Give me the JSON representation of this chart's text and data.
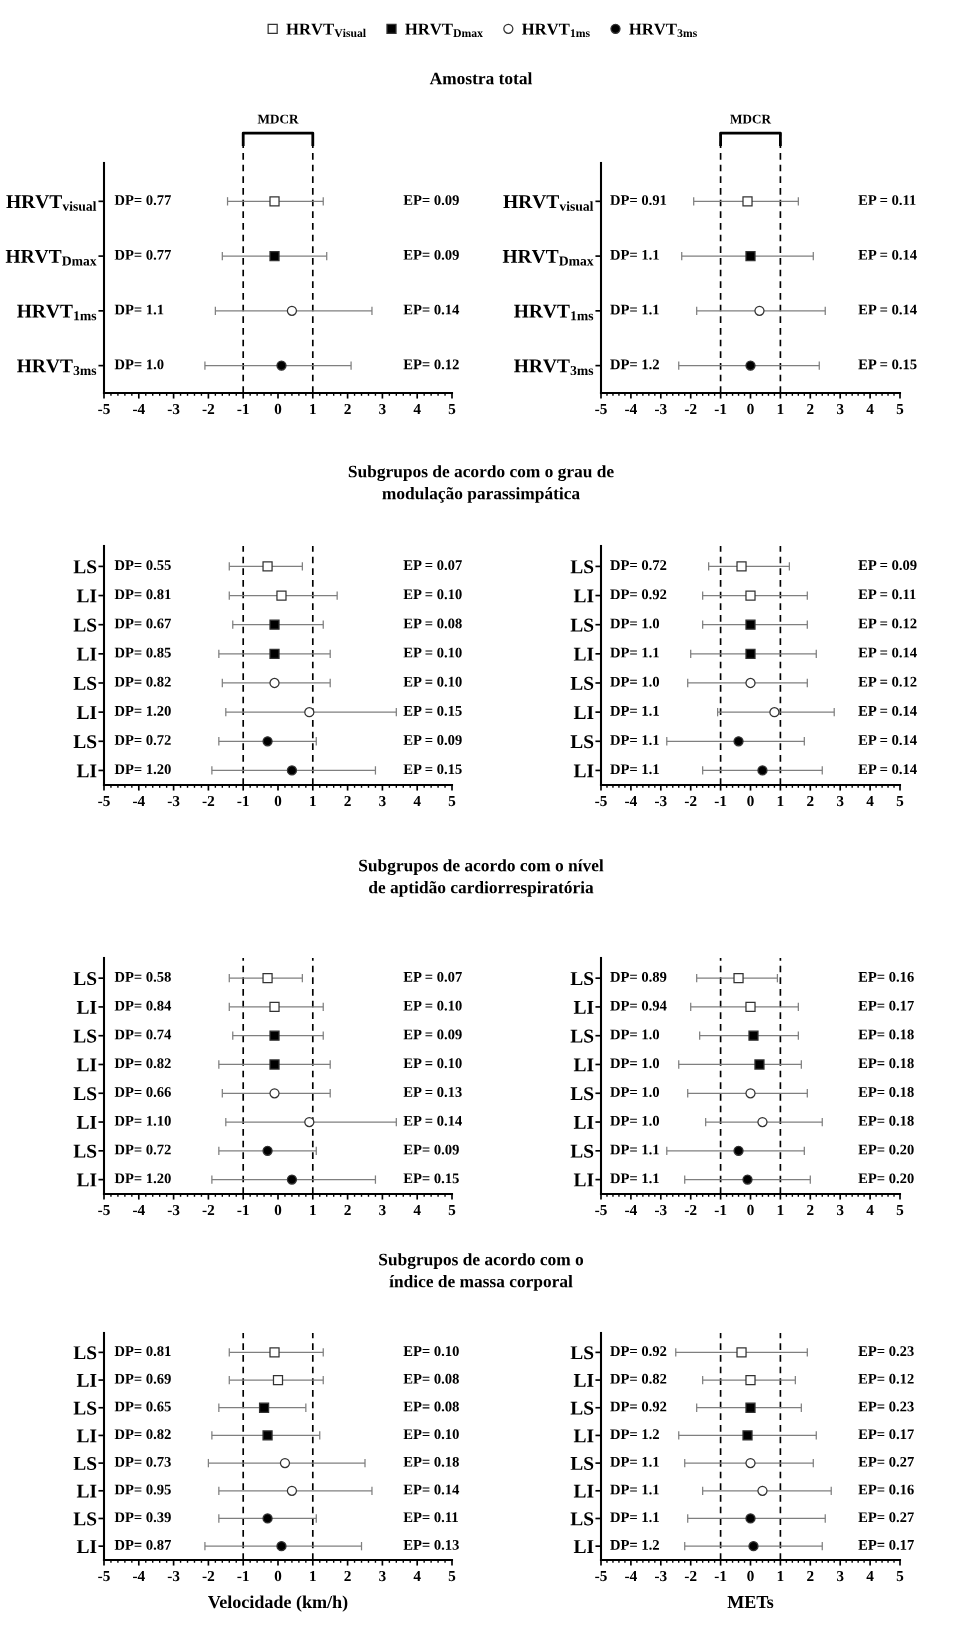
{
  "chart_data": [
    {
      "type": "scatter",
      "orientation": "horizontal",
      "title": "Amostra total",
      "legend": "top",
      "categories": [
        "HRVT$_{visual}$",
        "HRVT$_{Dmax}$",
        "HRVT$_{1ms}$",
        "HRVT$_{3ms}$"
      ],
      "xlim": [
        -5,
        5
      ],
      "xticks": [
        -5,
        -4,
        -3,
        -2,
        -1,
        0,
        1,
        2,
        3,
        4,
        5
      ],
      "ref_lines": [
        {
          "axis": "x",
          "value": -1,
          "line_style": "dashed"
        },
        {
          "axis": "x",
          "value": 1,
          "line_style": "dashed"
        }
      ],
      "series": [
        {
          "name": "HRVT$_{Visual}$",
          "marker": "square",
          "color": "#ffffff",
          "values": [
            -0.1,
            null,
            null,
            null
          ],
          "errors": [
            [
              -1.45,
              1.3
            ],
            null,
            null,
            null
          ]
        },
        {
          "name": "HRVT$_{Dmax}$",
          "marker": "square",
          "color": "#000000",
          "values": [
            null,
            -0.1,
            null,
            null
          ],
          "errors": [
            null,
            [
              -1.6,
              1.4
            ],
            null,
            null
          ]
        },
        {
          "name": "HRVT$_{1ms}$",
          "marker": "circle",
          "color": "#ffffff",
          "values": [
            null,
            null,
            0.4,
            null
          ],
          "errors": [
            null,
            null,
            [
              -1.8,
              2.7
            ],
            null
          ]
        },
        {
          "name": "HRVT$_{3ms}$",
          "marker": "circle",
          "color": "#000000",
          "values": [
            null,
            null,
            null,
            0.1
          ],
          "errors": [
            null,
            null,
            null,
            [
              -2.1,
              2.1
            ]
          ]
        }
      ],
      "annotations": [
        "DP= 0.77",
        "DP= 0.77",
        "DP= 1.1",
        "DP= 1.0",
        "EP= 0.09",
        "EP= 0.09",
        "EP= 0.14",
        "EP= 0.12",
        "MDCR"
      ]
    },
    {
      "type": "scatter",
      "orientation": "horizontal",
      "categories": [
        "HRVT$_{visual}$",
        "HRVT$_{Dmax}$",
        "HRVT$_{1ms}$",
        "HRVT$_{3ms}$"
      ],
      "xlim": [
        -5,
        5
      ],
      "xticks": [
        -5,
        -4,
        -3,
        -2,
        -1,
        0,
        1,
        2,
        3,
        4,
        5
      ],
      "ref_lines": [
        {
          "axis": "x",
          "value": -1,
          "line_style": "dashed"
        },
        {
          "axis": "x",
          "value": 1,
          "line_style": "dashed"
        }
      ],
      "series": [
        {
          "marker": "square",
          "color": "#ffffff",
          "values": [
            -0.1,
            null,
            null,
            null
          ],
          "errors": [
            [
              -1.9,
              1.6
            ],
            null,
            null,
            null
          ]
        },
        {
          "marker": "square",
          "color": "#000000",
          "values": [
            null,
            0.0,
            null,
            null
          ],
          "errors": [
            null,
            [
              -2.3,
              2.1
            ],
            null,
            null
          ]
        },
        {
          "marker": "circle",
          "color": "#ffffff",
          "values": [
            null,
            null,
            0.3,
            null
          ],
          "errors": [
            null,
            null,
            [
              -1.8,
              2.5
            ],
            null
          ]
        },
        {
          "marker": "circle",
          "color": "#000000",
          "values": [
            null,
            null,
            null,
            0.0
          ],
          "errors": [
            null,
            null,
            null,
            [
              -2.4,
              2.3
            ]
          ]
        }
      ],
      "annotations": [
        "DP= 0.91",
        "DP= 1.1",
        "DP= 1.1",
        "DP= 1.2",
        "EP = 0.11",
        "EP = 0.14",
        "EP = 0.14",
        "EP = 0.15",
        "MDCR"
      ]
    },
    {
      "type": "scatter",
      "orientation": "horizontal",
      "title": "Subgrupos de acordo com o grau de\nmodulação parassimpática",
      "categories": [
        "LS",
        "LI",
        "LS",
        "LI",
        "LS",
        "LI",
        "LS",
        "LI"
      ],
      "xlim": [
        -5,
        5
      ],
      "xticks": [
        -5,
        -4,
        -3,
        -2,
        -1,
        0,
        1,
        2,
        3,
        4,
        5
      ],
      "ref_lines": [
        {
          "axis": "x",
          "value": -1,
          "line_style": "dashed"
        },
        {
          "axis": "x",
          "value": 1,
          "line_style": "dashed"
        }
      ],
      "series": [
        {
          "marker": "square",
          "color": "#ffffff",
          "values": [
            -0.3,
            0.1,
            null,
            null,
            null,
            null,
            null,
            null
          ],
          "errors": [
            [
              -1.4,
              0.7
            ],
            [
              -1.4,
              1.7
            ],
            null,
            null,
            null,
            null,
            null,
            null
          ]
        },
        {
          "marker": "square",
          "color": "#000000",
          "values": [
            null,
            null,
            -0.1,
            -0.1,
            null,
            null,
            null,
            null
          ],
          "errors": [
            null,
            null,
            [
              -1.3,
              1.3
            ],
            [
              -1.7,
              1.5
            ],
            null,
            null,
            null,
            null
          ]
        },
        {
          "marker": "circle",
          "color": "#ffffff",
          "values": [
            null,
            null,
            null,
            null,
            -0.1,
            0.9,
            null,
            null
          ],
          "errors": [
            null,
            null,
            null,
            null,
            [
              -1.6,
              1.5
            ],
            [
              -1.5,
              3.4
            ],
            null,
            null
          ]
        },
        {
          "marker": "circle",
          "color": "#000000",
          "values": [
            null,
            null,
            null,
            null,
            null,
            null,
            -0.3,
            0.4
          ],
          "errors": [
            null,
            null,
            null,
            null,
            null,
            null,
            [
              -1.7,
              1.1
            ],
            [
              -1.9,
              2.8
            ]
          ]
        }
      ],
      "annotations": [
        "DP= 0.55",
        "DP= 0.81",
        "DP= 0.67",
        "DP= 0.85",
        "DP= 0.82",
        "DP= 1.20",
        "DP= 0.72",
        "DP= 1.20",
        "EP = 0.07",
        "EP = 0.10",
        "EP = 0.08",
        "EP = 0.10",
        "EP = 0.10",
        "EP = 0.15",
        "EP = 0.09",
        "EP = 0.15"
      ]
    },
    {
      "type": "scatter",
      "orientation": "horizontal",
      "categories": [
        "LS",
        "LI",
        "LS",
        "LI",
        "LS",
        "LI",
        "LS",
        "LI"
      ],
      "xlim": [
        -5,
        5
      ],
      "xticks": [
        -5,
        -4,
        -3,
        -2,
        -1,
        0,
        1,
        2,
        3,
        4,
        5
      ],
      "ref_lines": [
        {
          "axis": "x",
          "value": -1,
          "line_style": "dashed"
        },
        {
          "axis": "x",
          "value": 1,
          "line_style": "dashed"
        }
      ],
      "series": [
        {
          "marker": "square",
          "color": "#ffffff",
          "values": [
            -0.3,
            0.0,
            null,
            null,
            null,
            null,
            null,
            null
          ],
          "errors": [
            [
              -1.4,
              1.3
            ],
            [
              -1.6,
              1.9
            ],
            null,
            null,
            null,
            null,
            null,
            null
          ]
        },
        {
          "marker": "square",
          "color": "#000000",
          "values": [
            null,
            null,
            0.0,
            0.0,
            null,
            null,
            null,
            null
          ],
          "errors": [
            null,
            null,
            [
              -1.6,
              1.9
            ],
            [
              -2.0,
              2.2
            ],
            null,
            null,
            null,
            null
          ]
        },
        {
          "marker": "circle",
          "color": "#ffffff",
          "values": [
            null,
            null,
            null,
            null,
            0.0,
            0.8,
            null,
            null
          ],
          "errors": [
            null,
            null,
            null,
            null,
            [
              -2.1,
              1.9
            ],
            [
              -1.1,
              2.8
            ],
            null,
            null
          ]
        },
        {
          "marker": "circle",
          "color": "#000000",
          "values": [
            null,
            null,
            null,
            null,
            null,
            null,
            -0.4,
            0.4
          ],
          "errors": [
            null,
            null,
            null,
            null,
            null,
            null,
            [
              -2.8,
              1.8
            ],
            [
              -1.6,
              2.4
            ]
          ]
        }
      ],
      "annotations": [
        "DP= 0.72",
        "DP= 0.92",
        "DP= 1.0",
        "DP= 1.1",
        "DP= 1.0",
        "DP= 1.1",
        "DP= 1.1",
        "DP= 1.1",
        "EP = 0.09",
        "EP = 0.11",
        "EP = 0.12",
        "EP = 0.14",
        "EP = 0.12",
        "EP = 0.14",
        "EP = 0.14",
        "EP = 0.14"
      ]
    },
    {
      "type": "scatter",
      "orientation": "horizontal",
      "title": "Subgrupos de acordo com o nível\nde aptidão cardiorrespiratória",
      "categories": [
        "LS",
        "LI",
        "LS",
        "LI",
        "LS",
        "LI",
        "LS",
        "LI"
      ],
      "xlim": [
        -5,
        5
      ],
      "xticks": [
        -5,
        -4,
        -3,
        -2,
        -1,
        0,
        1,
        2,
        3,
        4,
        5
      ],
      "ref_lines": [
        {
          "axis": "x",
          "value": -1,
          "line_style": "dashed"
        },
        {
          "axis": "x",
          "value": 1,
          "line_style": "dashed"
        }
      ],
      "series": [
        {
          "marker": "square",
          "color": "#ffffff",
          "values": [
            -0.3,
            -0.1,
            null,
            null,
            null,
            null,
            null,
            null
          ],
          "errors": [
            [
              -1.4,
              0.7
            ],
            [
              -1.4,
              1.3
            ],
            null,
            null,
            null,
            null,
            null,
            null
          ]
        },
        {
          "marker": "square",
          "color": "#000000",
          "values": [
            null,
            null,
            -0.1,
            -0.1,
            null,
            null,
            null,
            null
          ],
          "errors": [
            null,
            null,
            [
              -1.3,
              1.3
            ],
            [
              -1.7,
              1.5
            ],
            null,
            null,
            null,
            null
          ]
        },
        {
          "marker": "circle",
          "color": "#ffffff",
          "values": [
            null,
            null,
            null,
            null,
            -0.1,
            0.9,
            null,
            null
          ],
          "errors": [
            null,
            null,
            null,
            null,
            [
              -1.6,
              1.5
            ],
            [
              -1.5,
              3.4
            ],
            null,
            null
          ]
        },
        {
          "marker": "circle",
          "color": "#000000",
          "values": [
            null,
            null,
            null,
            null,
            null,
            null,
            -0.3,
            0.4
          ],
          "errors": [
            null,
            null,
            null,
            null,
            null,
            null,
            [
              -1.7,
              1.1
            ],
            [
              -1.9,
              2.8
            ]
          ]
        }
      ],
      "annotations": [
        "DP= 0.58",
        "DP= 0.84",
        "DP= 0.74",
        "DP= 0.82",
        "DP= 0.66",
        "DP= 1.10",
        "DP= 0.72",
        "DP= 1.20",
        "EP = 0.07",
        "EP = 0.10",
        "EP = 0.09",
        "EP = 0.10",
        "EP = 0.13",
        "EP = 0.14",
        "EP= 0.09",
        "EP= 0.15"
      ]
    },
    {
      "type": "scatter",
      "orientation": "horizontal",
      "categories": [
        "LS",
        "LI",
        "LS",
        "LI",
        "LS",
        "LI",
        "LS",
        "LI"
      ],
      "xlim": [
        -5,
        5
      ],
      "xticks": [
        -5,
        -4,
        -3,
        -2,
        -1,
        0,
        1,
        2,
        3,
        4,
        5
      ],
      "ref_lines": [
        {
          "axis": "x",
          "value": -1,
          "line_style": "dashed"
        },
        {
          "axis": "x",
          "value": 1,
          "line_style": "dashed"
        }
      ],
      "series": [
        {
          "marker": "square",
          "color": "#ffffff",
          "values": [
            -0.4,
            0.0,
            null,
            null,
            null,
            null,
            null,
            null
          ],
          "errors": [
            [
              -1.8,
              0.9
            ],
            [
              -2.0,
              1.6
            ],
            null,
            null,
            null,
            null,
            null,
            null
          ]
        },
        {
          "marker": "square",
          "color": "#000000",
          "values": [
            null,
            null,
            0.1,
            0.3,
            null,
            null,
            null,
            null
          ],
          "errors": [
            null,
            null,
            [
              -1.7,
              1.6
            ],
            [
              -2.4,
              1.7
            ],
            null,
            null,
            null,
            null
          ]
        },
        {
          "marker": "circle",
          "color": "#ffffff",
          "values": [
            null,
            null,
            null,
            null,
            0.0,
            0.4,
            null,
            null
          ],
          "errors": [
            null,
            null,
            null,
            null,
            [
              -2.1,
              1.9
            ],
            [
              -1.5,
              2.4
            ],
            null,
            null
          ]
        },
        {
          "marker": "circle",
          "color": "#000000",
          "values": [
            null,
            null,
            null,
            null,
            null,
            null,
            -0.4,
            -0.1
          ],
          "errors": [
            null,
            null,
            null,
            null,
            null,
            null,
            [
              -2.8,
              1.8
            ],
            [
              -2.2,
              2.0
            ]
          ]
        }
      ],
      "annotations": [
        "DP= 0.89",
        "DP= 0.94",
        "DP= 1.0",
        "DP= 1.0",
        "DP= 1.0",
        "DP= 1.0",
        "DP= 1.1",
        "DP= 1.1",
        "EP= 0.16",
        "EP= 0.17",
        "EP= 0.18",
        "EP= 0.18",
        "EP= 0.18",
        "EP= 0.18",
        "EP= 0.20",
        "EP= 0.20"
      ]
    },
    {
      "type": "scatter",
      "orientation": "horizontal",
      "title": "Subgrupos de acordo com o\níndice de massa corporal",
      "xlabel": "Velocidade (km/h)",
      "categories": [
        "LS",
        "LI",
        "LS",
        "LI",
        "LS",
        "LI",
        "LS",
        "LI"
      ],
      "xlim": [
        -5,
        5
      ],
      "xticks": [
        -5,
        -4,
        -3,
        -2,
        -1,
        0,
        1,
        2,
        3,
        4,
        5
      ],
      "ref_lines": [
        {
          "axis": "x",
          "value": -1,
          "line_style": "dashed"
        },
        {
          "axis": "x",
          "value": 1,
          "line_style": "dashed"
        }
      ],
      "series": [
        {
          "marker": "square",
          "color": "#ffffff",
          "values": [
            -0.1,
            0.0,
            null,
            null,
            null,
            null,
            null,
            null
          ],
          "errors": [
            [
              -1.4,
              1.3
            ],
            [
              -1.4,
              1.3
            ],
            null,
            null,
            null,
            null,
            null,
            null
          ]
        },
        {
          "marker": "square",
          "color": "#000000",
          "values": [
            null,
            null,
            -0.4,
            -0.3,
            null,
            null,
            null,
            null
          ],
          "errors": [
            null,
            null,
            [
              -1.7,
              0.8
            ],
            [
              -1.9,
              1.2
            ],
            null,
            null,
            null,
            null
          ]
        },
        {
          "marker": "circle",
          "color": "#ffffff",
          "values": [
            null,
            null,
            null,
            null,
            0.2,
            0.4,
            null,
            null
          ],
          "errors": [
            null,
            null,
            null,
            null,
            [
              -2.0,
              2.5
            ],
            [
              -1.7,
              2.7
            ],
            null,
            null
          ]
        },
        {
          "marker": "circle",
          "color": "#000000",
          "values": [
            null,
            null,
            null,
            null,
            null,
            null,
            -0.3,
            0.1
          ],
          "errors": [
            null,
            null,
            null,
            null,
            null,
            null,
            [
              -1.7,
              1.1
            ],
            [
              -2.1,
              2.4
            ]
          ]
        }
      ],
      "annotations": [
        "DP= 0.81",
        "DP= 0.69",
        "DP= 0.65",
        "DP= 0.82",
        "DP= 0.73",
        "DP= 0.95",
        "DP= 0.39",
        "DP= 0.87",
        "EP= 0.10",
        "EP= 0.08",
        "EP= 0.08",
        "EP= 0.10",
        "EP= 0.18",
        "EP= 0.14",
        "EP= 0.11",
        "EP= 0.13"
      ]
    },
    {
      "type": "scatter",
      "orientation": "horizontal",
      "xlabel": "METs",
      "categories": [
        "LS",
        "LI",
        "LS",
        "LI",
        "LS",
        "LI",
        "LS",
        "LI"
      ],
      "xlim": [
        -5,
        5
      ],
      "xticks": [
        -5,
        -4,
        -3,
        -2,
        -1,
        0,
        1,
        2,
        3,
        4,
        5
      ],
      "ref_lines": [
        {
          "axis": "x",
          "value": -1,
          "line_style": "dashed"
        },
        {
          "axis": "x",
          "value": 1,
          "line_style": "dashed"
        }
      ],
      "series": [
        {
          "marker": "square",
          "color": "#ffffff",
          "values": [
            -0.3,
            0.0,
            null,
            null,
            null,
            null,
            null,
            null
          ],
          "errors": [
            [
              -2.5,
              1.9
            ],
            [
              -1.6,
              1.5
            ],
            null,
            null,
            null,
            null,
            null,
            null
          ]
        },
        {
          "marker": "square",
          "color": "#000000",
          "values": [
            null,
            null,
            0.0,
            -0.1,
            null,
            null,
            null,
            null
          ],
          "errors": [
            null,
            null,
            [
              -1.8,
              1.7
            ],
            [
              -2.4,
              2.2
            ],
            null,
            null,
            null,
            null
          ]
        },
        {
          "marker": "circle",
          "color": "#ffffff",
          "values": [
            null,
            null,
            null,
            null,
            0.0,
            0.4,
            null,
            null
          ],
          "errors": [
            null,
            null,
            null,
            null,
            [
              -2.2,
              2.1
            ],
            [
              -1.6,
              2.7
            ],
            null,
            null
          ]
        },
        {
          "marker": "circle",
          "color": "#000000",
          "values": [
            null,
            null,
            null,
            null,
            null,
            null,
            0.0,
            0.1
          ],
          "errors": [
            null,
            null,
            null,
            null,
            null,
            null,
            [
              -2.1,
              2.5
            ],
            [
              -2.2,
              2.4
            ]
          ]
        }
      ],
      "annotations": [
        "DP= 0.92",
        "DP= 0.82",
        "DP= 0.92",
        "DP= 1.2",
        "DP= 1.1",
        "DP= 1.1",
        "DP= 1.1",
        "DP= 1.2",
        "EP= 0.23",
        "EP= 0.12",
        "EP= 0.23",
        "EP= 0.17",
        "EP= 0.27",
        "EP= 0.16",
        "EP= 0.27",
        "EP= 0.17"
      ]
    }
  ]
}
